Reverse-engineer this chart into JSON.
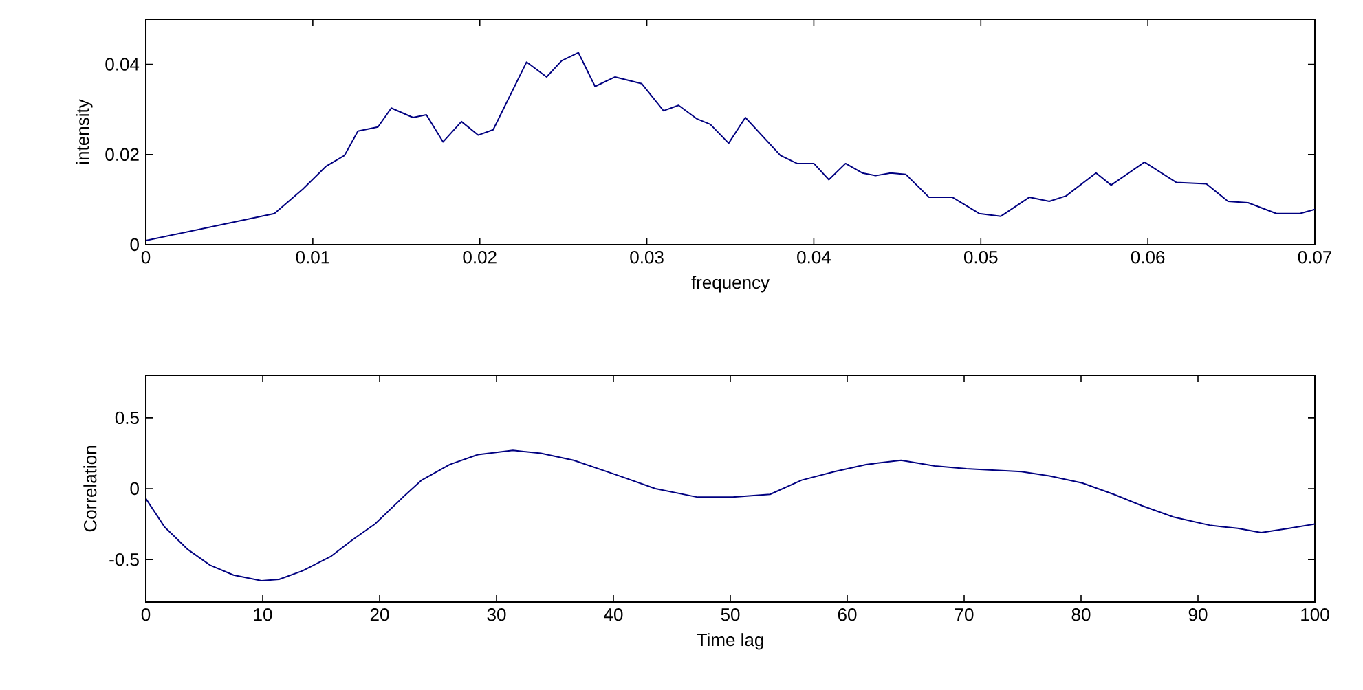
{
  "chart_data": [
    {
      "type": "line",
      "xlabel": "frequency",
      "ylabel": "intensity",
      "x": [
        0,
        0.0077,
        0.0094,
        0.0108,
        0.0119,
        0.0127,
        0.0139,
        0.0147,
        0.016,
        0.0168,
        0.0178,
        0.0189,
        0.0199,
        0.0208,
        0.0228,
        0.024,
        0.0249,
        0.0259,
        0.0269,
        0.0281,
        0.0297,
        0.031,
        0.0319,
        0.033,
        0.0338,
        0.0349,
        0.0359,
        0.038,
        0.039,
        0.04,
        0.0409,
        0.0419,
        0.0429,
        0.0437,
        0.0446,
        0.0455,
        0.0469,
        0.0483,
        0.0499,
        0.0512,
        0.0529,
        0.0541,
        0.0551,
        0.0569,
        0.0578,
        0.0598,
        0.0617,
        0.0635,
        0.0648,
        0.066,
        0.0677,
        0.0691,
        0.07
      ],
      "series": [
        {
          "color": "#000080",
          "values": [
            0.0009,
            0.0069,
            0.0123,
            0.0174,
            0.0198,
            0.0252,
            0.0261,
            0.0303,
            0.0282,
            0.0288,
            0.0228,
            0.0273,
            0.0243,
            0.0255,
            0.0405,
            0.0372,
            0.0408,
            0.0426,
            0.0351,
            0.0372,
            0.0357,
            0.0297,
            0.0309,
            0.0279,
            0.0267,
            0.0225,
            0.0282,
            0.0198,
            0.018,
            0.018,
            0.0144,
            0.018,
            0.0159,
            0.0153,
            0.0159,
            0.0156,
            0.0105,
            0.0105,
            0.0069,
            0.0063,
            0.0105,
            0.0096,
            0.0108,
            0.0159,
            0.0132,
            0.0183,
            0.0138,
            0.0135,
            0.0096,
            0.0093,
            0.0069,
            0.0069,
            0.0078
          ]
        }
      ],
      "xlim": [
        0,
        0.07
      ],
      "ylim": [
        0,
        0.05
      ],
      "xticks": [
        0,
        0.01,
        0.02,
        0.03,
        0.04,
        0.05,
        0.06,
        0.07
      ],
      "yticks": [
        0,
        0.02,
        0.04
      ]
    },
    {
      "type": "line",
      "xlabel": "Time lag",
      "ylabel": "Correlation",
      "x": [
        0,
        1.6,
        3.6,
        5.5,
        7.5,
        9.9,
        11.4,
        13.4,
        15.8,
        17.7,
        19.6,
        22,
        23.6,
        26,
        28.4,
        31.4,
        33.8,
        36.6,
        40.5,
        43.6,
        47.2,
        50.2,
        53.4,
        56.1,
        58.9,
        61.6,
        64.6,
        67.5,
        70.2,
        74.9,
        77.3,
        80.1,
        82.8,
        85.2,
        87.9,
        91.1,
        93.4,
        95.4,
        97.8,
        100
      ],
      "series": [
        {
          "color": "#000080",
          "values": [
            -0.07,
            -0.27,
            -0.43,
            -0.54,
            -0.61,
            -0.65,
            -0.64,
            -0.58,
            -0.48,
            -0.36,
            -0.25,
            -0.06,
            0.06,
            0.17,
            0.24,
            0.27,
            0.25,
            0.2,
            0.09,
            0.0,
            -0.06,
            -0.06,
            -0.04,
            0.06,
            0.12,
            0.17,
            0.2,
            0.16,
            0.14,
            0.12,
            0.09,
            0.04,
            -0.04,
            -0.12,
            -0.2,
            -0.26,
            -0.28,
            -0.31,
            -0.28,
            -0.25
          ]
        }
      ],
      "xlim": [
        0,
        100
      ],
      "ylim": [
        -0.8,
        0.8
      ],
      "xticks": [
        0,
        10,
        20,
        30,
        40,
        50,
        60,
        70,
        80,
        90,
        100
      ],
      "yticks": [
        -0.5,
        0,
        0.5
      ]
    }
  ]
}
